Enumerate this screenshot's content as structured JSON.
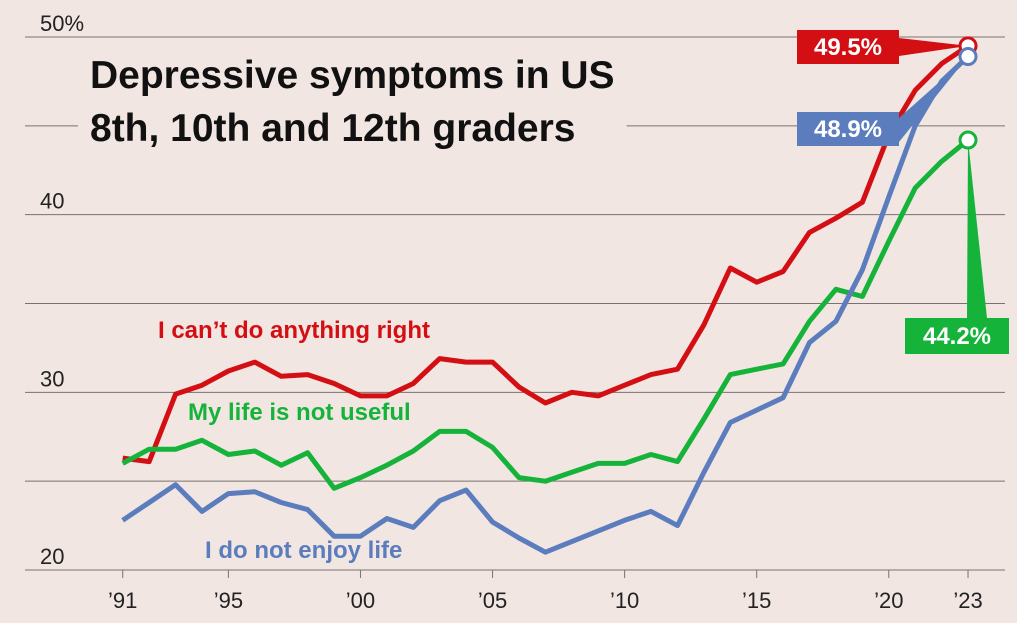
{
  "chart_data": {
    "type": "line",
    "title": [
      "Depressive symptoms in US",
      "8th, 10th and 12th graders"
    ],
    "x": [
      1991,
      1992,
      1993,
      1994,
      1995,
      1996,
      1997,
      1998,
      1999,
      2000,
      2001,
      2002,
      2003,
      2004,
      2005,
      2006,
      2007,
      2008,
      2009,
      2010,
      2011,
      2012,
      2013,
      2014,
      2015,
      2016,
      2017,
      2018,
      2019,
      2020,
      2021,
      2022,
      2023
    ],
    "xlim": [
      1987.3,
      2024.4
    ],
    "xticks": [
      {
        "value": 1991,
        "label": "’91"
      },
      {
        "value": 1995,
        "label": "’95"
      },
      {
        "value": 2000,
        "label": "’00"
      },
      {
        "value": 2005,
        "label": "’05"
      },
      {
        "value": 2010,
        "label": "’10"
      },
      {
        "value": 2015,
        "label": "’15"
      },
      {
        "value": 2020,
        "label": "’20"
      },
      {
        "value": 2023,
        "label": "’23"
      }
    ],
    "ylim": [
      20,
      50
    ],
    "yticks": [
      20,
      {
        "value": 25,
        "label": null
      },
      30,
      {
        "value": 35,
        "label": null
      },
      40,
      {
        "value": 45,
        "label": null
      },
      {
        "value": 50,
        "label": "50%"
      }
    ],
    "grid": true,
    "series": [
      {
        "name": "I can’t do anything right",
        "color": "#d40f14",
        "values": [
          26.3,
          26.1,
          29.9,
          30.4,
          31.2,
          31.7,
          30.9,
          31.0,
          30.5,
          29.8,
          29.8,
          30.5,
          31.9,
          31.7,
          31.7,
          30.3,
          29.4,
          30.0,
          29.8,
          30.4,
          31.0,
          31.3,
          33.8,
          37.0,
          36.2,
          36.8,
          39.0,
          39.8,
          40.7,
          44.5,
          47.0,
          48.5,
          49.5
        ],
        "value_labels": [
          null,
          null,
          null,
          null,
          null,
          null,
          null,
          null,
          null,
          null,
          null,
          null,
          null,
          null,
          null,
          null,
          null,
          null,
          null,
          null,
          null,
          null,
          null,
          null,
          null,
          null,
          null,
          null,
          null,
          null,
          null,
          null,
          "49.5%"
        ]
      },
      {
        "name": "My life is not useful",
        "color": "#16b33a",
        "values": [
          26.0,
          26.8,
          26.8,
          27.3,
          26.5,
          26.7,
          25.9,
          26.6,
          24.6,
          25.2,
          25.9,
          26.7,
          27.8,
          27.8,
          26.9,
          25.2,
          25.0,
          25.5,
          26.0,
          26.0,
          26.5,
          26.1,
          28.5,
          31.0,
          31.3,
          31.6,
          34.0,
          35.8,
          35.4,
          38.5,
          41.5,
          43.0,
          44.2
        ],
        "value_labels": [
          null,
          null,
          null,
          null,
          null,
          null,
          null,
          null,
          null,
          null,
          null,
          null,
          null,
          null,
          null,
          null,
          null,
          null,
          null,
          null,
          null,
          null,
          null,
          null,
          null,
          null,
          null,
          null,
          null,
          null,
          null,
          null,
          "44.2%"
        ]
      },
      {
        "name": "I do not enjoy life",
        "color": "#5b7dbd",
        "values": [
          22.8,
          23.8,
          24.8,
          23.3,
          24.3,
          24.4,
          23.8,
          23.4,
          21.9,
          21.9,
          22.9,
          22.4,
          23.9,
          24.5,
          22.7,
          21.8,
          21.0,
          21.6,
          22.2,
          22.8,
          23.3,
          22.5,
          25.5,
          28.3,
          29.0,
          29.7,
          32.8,
          34.0,
          36.9,
          41.0,
          45.0,
          47.5,
          48.9
        ],
        "value_labels": [
          null,
          null,
          null,
          null,
          null,
          null,
          null,
          null,
          null,
          null,
          null,
          null,
          null,
          null,
          null,
          null,
          null,
          null,
          null,
          null,
          null,
          null,
          null,
          null,
          null,
          null,
          null,
          null,
          null,
          null,
          null,
          null,
          "48.9%"
        ]
      }
    ]
  }
}
